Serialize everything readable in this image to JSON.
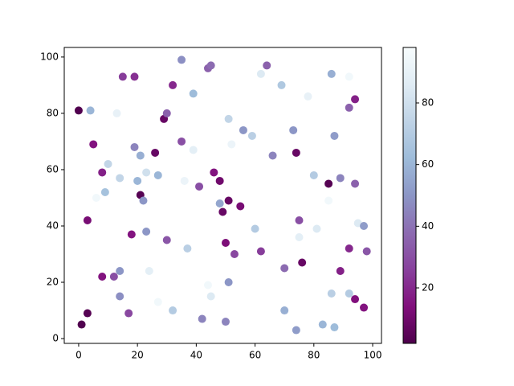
{
  "chart_data": {
    "type": "scatter",
    "x": [
      0,
      4,
      5,
      1,
      3,
      3,
      8,
      8,
      9,
      10,
      6,
      13,
      12,
      14,
      14,
      14,
      15,
      17,
      18,
      19,
      19,
      20,
      21,
      21,
      22,
      23,
      23,
      24,
      26,
      27,
      27,
      29,
      30,
      30,
      32,
      32,
      35,
      35,
      36,
      37,
      39,
      39,
      41,
      42,
      44,
      44,
      45,
      45,
      46,
      48,
      48,
      49,
      50,
      50,
      51,
      51,
      51,
      52,
      53,
      55,
      56,
      59,
      60,
      62,
      62,
      64,
      66,
      69,
      70,
      70,
      73,
      74,
      74,
      75,
      75,
      76,
      78,
      80,
      81,
      83,
      85,
      85,
      86,
      86,
      87,
      87,
      89,
      89,
      92,
      92,
      92,
      92,
      94,
      94,
      94,
      95,
      97,
      97,
      98
    ],
    "values": [
      81,
      81,
      69,
      5,
      9,
      42,
      59,
      22,
      52,
      62,
      50,
      80,
      22,
      24,
      57,
      15,
      93,
      9,
      37,
      93,
      68,
      56,
      65,
      51,
      49,
      59,
      38,
      24,
      66,
      58,
      13,
      78,
      80,
      35,
      90,
      10,
      99,
      70,
      56,
      32,
      87,
      67,
      54,
      7,
      19,
      96,
      97,
      15,
      59,
      48,
      56,
      45,
      34,
      6,
      78,
      49,
      20,
      69,
      30,
      47,
      74,
      72,
      39,
      94,
      31,
      97,
      65,
      90,
      25,
      10,
      74,
      66,
      3,
      42,
      36,
      27,
      86,
      58,
      39,
      5,
      55,
      49,
      94,
      16,
      72,
      4,
      57,
      24,
      93,
      82,
      32,
      16,
      55,
      85,
      14,
      41,
      40,
      11,
      31
    ],
    "c": [
      3,
      60,
      15,
      3,
      4,
      12,
      18,
      15,
      65,
      75,
      95,
      90,
      30,
      50,
      75,
      48,
      25,
      28,
      15,
      22,
      45,
      60,
      58,
      4,
      50,
      80,
      50,
      88,
      8,
      60,
      95,
      8,
      35,
      32,
      20,
      70,
      48,
      30,
      92,
      72,
      62,
      88,
      30,
      45,
      95,
      35,
      38,
      85,
      15,
      55,
      10,
      8,
      13,
      45,
      75,
      8,
      50,
      92,
      28,
      12,
      50,
      72,
      70,
      85,
      25,
      35,
      45,
      68,
      38,
      58,
      50,
      8,
      52,
      30,
      88,
      8,
      90,
      70,
      85,
      60,
      4,
      95,
      58,
      72,
      52,
      62,
      45,
      18,
      95,
      35,
      20,
      70,
      35,
      18,
      14,
      85,
      52,
      15,
      32
    ],
    "colormap": [
      "#4d004b",
      "#810f7c",
      "#88419d",
      "#8c6bb1",
      "#8c96c6",
      "#9ebcda",
      "#bfd3e6",
      "#e0ecf4",
      "#f7fcfd"
    ],
    "clim": [
      2,
      98
    ],
    "cticks": [
      20,
      40,
      60,
      80
    ],
    "xlim": [
      -4.9,
      103
    ],
    "ylim": [
      -1.7,
      103.4
    ],
    "xticks": [
      0,
      20,
      40,
      60,
      80,
      100
    ],
    "yticks": [
      0,
      20,
      40,
      60,
      80,
      100
    ]
  }
}
